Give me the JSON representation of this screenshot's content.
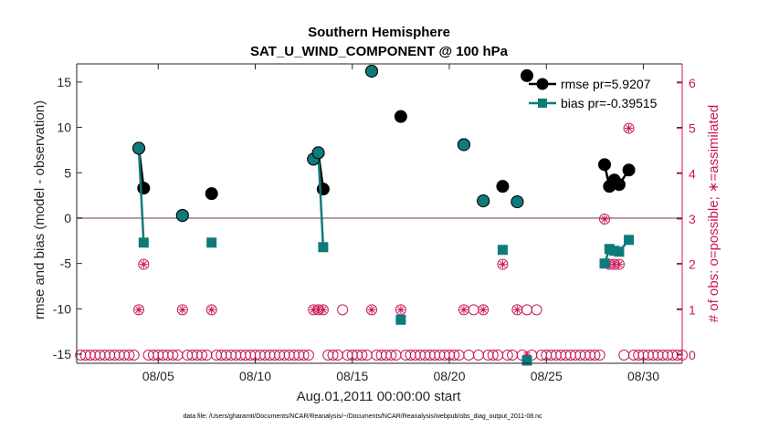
{
  "chart_data": {
    "type": "line",
    "title": [
      "Southern Hemisphere",
      "SAT_U_WIND_COMPONENT @ 100 hPa"
    ],
    "xlabel": "Aug.01,2011 00:00:00 start",
    "ylabel_left": "rmse and bias (model - observation)",
    "ylabel_right": "# of obs: o=possible; ∗=assimilated",
    "xlim": [
      0.8,
      32
    ],
    "ylim_left": [
      -16.0,
      17.0
    ],
    "ylim_right": [
      -0.18,
      6.42
    ],
    "x_ticks": [
      5,
      10,
      15,
      20,
      25,
      30
    ],
    "x_tick_labels": [
      "08/05",
      "08/10",
      "08/15",
      "08/20",
      "08/25",
      "08/30"
    ],
    "y_ticks_left": [
      -15,
      -10,
      -5,
      0,
      5,
      10,
      15
    ],
    "y_tick_labels_left": [
      "-15",
      "-10",
      "-5",
      "0",
      "5",
      "10",
      "15"
    ],
    "y_ticks_right": [
      0,
      1,
      2,
      3,
      4,
      5,
      6
    ],
    "y_tick_labels_right": [
      "0",
      "1",
      "2",
      "3",
      "4",
      "5",
      "6"
    ],
    "legend": [
      {
        "label": "rmse pr=5.9207",
        "series": "rmse"
      },
      {
        "label": "bias pr=-0.39515",
        "series": "bias"
      }
    ],
    "series": [
      {
        "name": "rmse",
        "color": "#000000",
        "segments": [
          [
            [
              4.0,
              7.7
            ],
            [
              4.25,
              3.3
            ]
          ],
          [
            [
              6.25,
              0.3
            ]
          ],
          [
            [
              7.75,
              2.7
            ]
          ],
          [
            [
              13.0,
              6.5
            ],
            [
              13.25,
              7.2
            ],
            [
              13.5,
              3.2
            ]
          ],
          [
            [
              16.0,
              16.2
            ]
          ],
          [
            [
              17.5,
              11.2
            ]
          ],
          [
            [
              20.75,
              8.1
            ]
          ],
          [
            [
              21.75,
              1.9
            ]
          ],
          [
            [
              22.75,
              3.5
            ]
          ],
          [
            [
              23.5,
              1.8
            ]
          ],
          [
            [
              24.0,
              15.7
            ]
          ],
          [
            [
              28.0,
              5.9
            ],
            [
              28.25,
              3.5
            ],
            [
              28.5,
              4.2
            ],
            [
              28.75,
              3.7
            ],
            [
              29.25,
              5.3
            ]
          ]
        ]
      },
      {
        "name": "bias",
        "color": "#0f7a7a",
        "segments": [
          [
            [
              4.0,
              7.7
            ],
            [
              4.25,
              -2.7
            ]
          ],
          [
            [
              6.25,
              0.3
            ]
          ],
          [
            [
              7.75,
              -2.7
            ]
          ],
          [
            [
              13.0,
              6.5
            ],
            [
              13.25,
              7.2
            ],
            [
              13.5,
              -3.2
            ]
          ],
          [
            [
              16.0,
              16.2
            ]
          ],
          [
            [
              17.5,
              -11.2
            ]
          ],
          [
            [
              20.75,
              8.1
            ]
          ],
          [
            [
              21.75,
              1.9
            ]
          ],
          [
            [
              22.75,
              -3.5
            ]
          ],
          [
            [
              23.5,
              1.8
            ]
          ],
          [
            [
              24.0,
              -15.7
            ]
          ],
          [
            [
              28.0,
              -5.0
            ],
            [
              28.25,
              -3.4
            ],
            [
              28.5,
              -3.6
            ],
            [
              28.75,
              -3.7
            ],
            [
              29.25,
              -2.4
            ]
          ]
        ]
      }
    ],
    "obs_possible": {
      "x_start": 1.0,
      "x_end": 32.0,
      "step": 0.25,
      "default": 0,
      "nonzero": [
        [
          4.0,
          1
        ],
        [
          4.25,
          2
        ],
        [
          6.25,
          1
        ],
        [
          7.75,
          1
        ],
        [
          13.0,
          1
        ],
        [
          13.25,
          1
        ],
        [
          13.5,
          1
        ],
        [
          14.5,
          1
        ],
        [
          16.0,
          1
        ],
        [
          17.5,
          1
        ],
        [
          20.75,
          1
        ],
        [
          21.25,
          1
        ],
        [
          21.75,
          1
        ],
        [
          22.75,
          2
        ],
        [
          23.5,
          1
        ],
        [
          24.0,
          1
        ],
        [
          24.5,
          1
        ],
        [
          28.0,
          3
        ],
        [
          28.25,
          2
        ],
        [
          28.5,
          2
        ],
        [
          28.75,
          2
        ],
        [
          29.25,
          5
        ]
      ]
    },
    "obs_assimilated": [
      [
        4.0,
        1
      ],
      [
        4.25,
        2
      ],
      [
        6.25,
        1
      ],
      [
        7.75,
        1
      ],
      [
        13.0,
        1
      ],
      [
        13.25,
        1
      ],
      [
        13.5,
        1
      ],
      [
        16.0,
        1
      ],
      [
        17.5,
        1
      ],
      [
        20.75,
        1
      ],
      [
        21.75,
        1
      ],
      [
        22.75,
        2
      ],
      [
        23.5,
        1
      ],
      [
        24.0,
        0
      ],
      [
        28.0,
        3
      ],
      [
        28.25,
        2
      ],
      [
        28.5,
        2
      ],
      [
        28.75,
        2
      ],
      [
        29.25,
        5
      ]
    ],
    "footnote": "data file: /Users/gharamti/Documents/NCAR/Reanalysis/~/Documents/NCAR/Reanalysis/webpub/obs_diag_output_2011-08.nc"
  }
}
